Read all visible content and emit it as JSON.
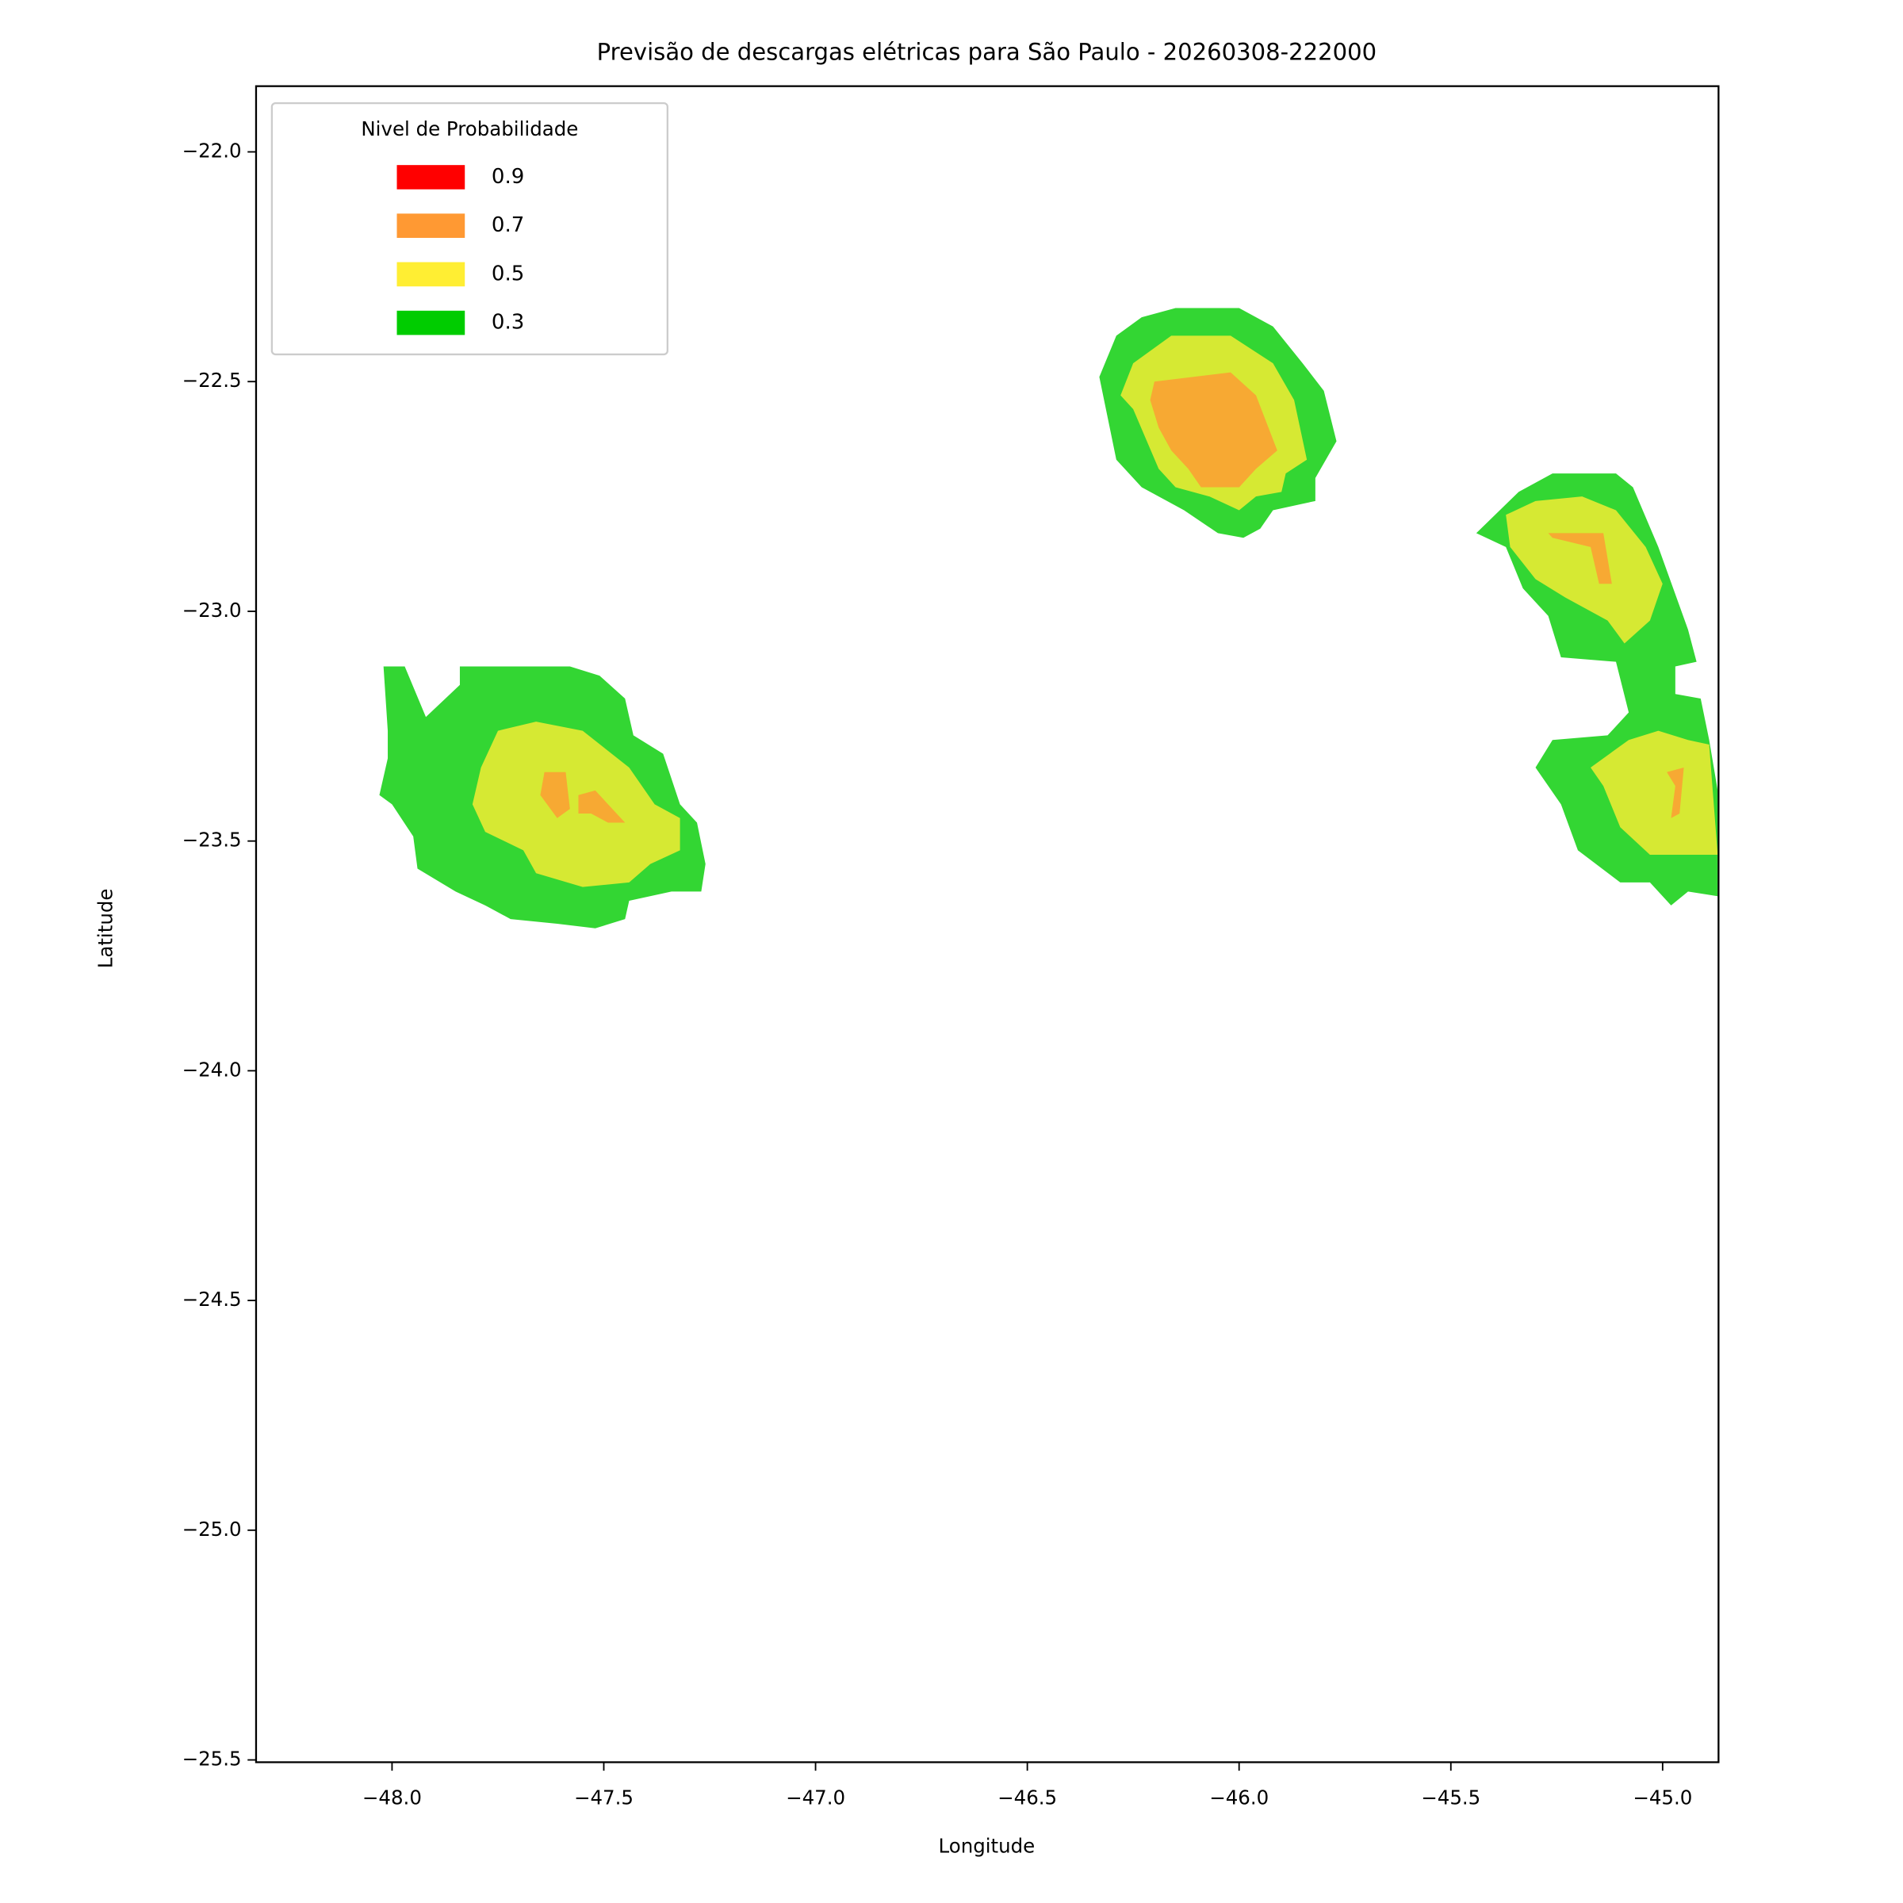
{
  "chart_data": {
    "type": "filled-contour",
    "title": "Previsão de descargas elétricas para São Paulo - 20260308-222000",
    "x_label": "Longitude",
    "y_label": "Latitude",
    "xlim": [
      -48.321,
      -44.868
    ],
    "ylim": [
      -25.505,
      -21.857
    ],
    "xticks": [
      {
        "value": -48,
        "label": "−48.0"
      },
      {
        "value": -47.5,
        "label": "−47.5"
      },
      {
        "value": -47,
        "label": "−47.0"
      },
      {
        "value": -46.5,
        "label": "−46.5"
      },
      {
        "value": -46,
        "label": "−46.0"
      },
      {
        "value": -45.5,
        "label": "−45.5"
      },
      {
        "value": -45,
        "label": "−45.0"
      }
    ],
    "yticks": [
      {
        "value": -22,
        "label": "−22.0"
      },
      {
        "value": -22.5,
        "label": "−22.5"
      },
      {
        "value": -23,
        "label": "−23.0"
      },
      {
        "value": -23.5,
        "label": "−23.5"
      },
      {
        "value": -24,
        "label": "−24.0"
      },
      {
        "value": -24.5,
        "label": "−24.5"
      },
      {
        "value": -25,
        "label": "−25.0"
      },
      {
        "value": -25.5,
        "label": "−25.5"
      }
    ],
    "legend_title": "Nivel de Probabilidade",
    "legend_position": "upper left",
    "alpha": 0.8,
    "series": [
      {
        "name": "0.9",
        "color": "#ff0000",
        "polygons": []
      },
      {
        "name": "0.7",
        "color": "#ff9933",
        "polygons": [
          {
            "x": [
              -47.64,
              -47.59,
              -47.58,
              -47.61,
              -47.65
            ],
            "y": [
              -23.35,
              -23.35,
              -23.43,
              -23.45,
              -23.4
            ]
          },
          {
            "x": [
              -47.56,
              -47.52,
              -47.49,
              -47.45,
              -47.49,
              -47.53,
              -47.56
            ],
            "y": [
              -23.4,
              -23.39,
              -23.42,
              -23.46,
              -23.46,
              -23.44,
              -23.44
            ]
          },
          {
            "x": [
              -46.2,
              -46.02,
              -45.96,
              -45.91,
              -45.96,
              -46.0,
              -46.09,
              -46.12,
              -46.16,
              -46.19,
              -46.21
            ],
            "y": [
              -22.5,
              -22.48,
              -22.53,
              -22.65,
              -22.69,
              -22.73,
              -22.73,
              -22.69,
              -22.65,
              -22.6,
              -22.54
            ]
          },
          {
            "x": [
              -45.27,
              -45.14,
              -45.12,
              -45.15,
              -45.17,
              -45.26
            ],
            "y": [
              -22.83,
              -22.83,
              -22.94,
              -22.94,
              -22.86,
              -22.84
            ]
          },
          {
            "x": [
              -44.99,
              -44.95,
              -44.96,
              -44.98,
              -44.97
            ],
            "y": [
              -23.35,
              -23.34,
              -23.44,
              -23.45,
              -23.38
            ]
          }
        ]
      },
      {
        "name": "0.5",
        "color": "#ffee33",
        "polygons": [
          {
            "x": [
              -47.75,
              -47.66,
              -47.55,
              -47.44,
              -47.38,
              -47.32,
              -47.32,
              -47.39,
              -47.44,
              -47.55,
              -47.66,
              -47.69,
              -47.78,
              -47.81,
              -47.79
            ],
            "y": [
              -23.26,
              -23.24,
              -23.26,
              -23.34,
              -23.42,
              -23.45,
              -23.52,
              -23.55,
              -23.59,
              -23.6,
              -23.57,
              -23.52,
              -23.48,
              -23.42,
              -23.34
            ]
          },
          {
            "x": [
              -46.16,
              -46.02,
              -45.92,
              -45.87,
              -45.84,
              -45.89,
              -45.9,
              -45.96,
              -46.0,
              -46.07,
              -46.15,
              -46.19,
              -46.25,
              -46.28,
              -46.25
            ],
            "y": [
              -22.4,
              -22.4,
              -22.46,
              -22.54,
              -22.67,
              -22.7,
              -22.74,
              -22.75,
              -22.78,
              -22.75,
              -22.73,
              -22.69,
              -22.56,
              -22.53,
              -22.46
            ]
          },
          {
            "x": [
              -45.37,
              -45.3,
              -45.19,
              -45.11,
              -45.04,
              -45.0,
              -45.03,
              -45.09,
              -45.13,
              -45.23,
              -45.3,
              -45.36
            ],
            "y": [
              -22.79,
              -22.76,
              -22.75,
              -22.78,
              -22.86,
              -22.94,
              -23.02,
              -23.07,
              -23.02,
              -22.97,
              -22.93,
              -22.86
            ]
          },
          {
            "x": [
              -45.17,
              -45.08,
              -45.01,
              -44.94,
              -44.89,
              -44.87,
              -45.03,
              -45.1,
              -45.14
            ],
            "y": [
              -23.34,
              -23.28,
              -23.26,
              -23.28,
              -23.29,
              -23.53,
              -23.53,
              -23.47,
              -23.38
            ]
          }
        ]
      },
      {
        "name": "0.3",
        "color": "#00cc00",
        "polygons": [
          {
            "x": [
              -48.02,
              -47.97,
              -47.92,
              -47.84,
              -47.84,
              -47.58,
              -47.51,
              -47.45,
              -47.43,
              -47.36,
              -47.32,
              -47.28,
              -47.26,
              -47.27,
              -47.34,
              -47.44,
              -47.45,
              -47.52,
              -47.61,
              -47.72,
              -47.78,
              -47.85,
              -47.94,
              -47.95,
              -48.0,
              -48.03,
              -48.01,
              -48.01
            ],
            "y": [
              -23.12,
              -23.12,
              -23.23,
              -23.16,
              -23.12,
              -23.12,
              -23.14,
              -23.19,
              -23.27,
              -23.31,
              -23.42,
              -23.46,
              -23.55,
              -23.61,
              -23.61,
              -23.63,
              -23.67,
              -23.69,
              -23.68,
              -23.67,
              -23.64,
              -23.61,
              -23.56,
              -23.49,
              -23.42,
              -23.4,
              -23.32,
              -23.26
            ]
          },
          {
            "x": [
              -46.15,
              -46.0,
              -45.92,
              -45.85,
              -45.8,
              -45.77,
              -45.82,
              -45.82,
              -45.92,
              -45.95,
              -45.99,
              -46.05,
              -46.13,
              -46.23,
              -46.29,
              -46.33,
              -46.29,
              -46.23
            ],
            "y": [
              -22.34,
              -22.34,
              -22.38,
              -22.46,
              -22.52,
              -22.63,
              -22.71,
              -22.76,
              -22.78,
              -22.82,
              -22.84,
              -22.83,
              -22.78,
              -22.73,
              -22.67,
              -22.49,
              -22.4,
              -22.36
            ]
          },
          {
            "x": [
              -45.44,
              -45.34,
              -45.26,
              -45.11,
              -45.07,
              -45.01,
              -44.94,
              -44.92,
              -44.97,
              -44.97,
              -44.91,
              -44.89,
              -44.87,
              -44.87,
              -44.94,
              -44.98,
              -45.03,
              -45.1,
              -45.2,
              -45.24,
              -45.3,
              -45.26,
              -45.13,
              -45.08,
              -45.11,
              -45.24,
              -45.27,
              -45.33,
              -45.37
            ],
            "y": [
              -22.83,
              -22.74,
              -22.7,
              -22.7,
              -22.73,
              -22.86,
              -23.04,
              -23.11,
              -23.12,
              -23.18,
              -23.19,
              -23.28,
              -23.39,
              -23.62,
              -23.61,
              -23.64,
              -23.59,
              -23.59,
              -23.52,
              -23.42,
              -23.34,
              -23.28,
              -23.27,
              -23.22,
              -23.11,
              -23.1,
              -23.01,
              -22.95,
              -22.86
            ]
          }
        ]
      }
    ]
  }
}
